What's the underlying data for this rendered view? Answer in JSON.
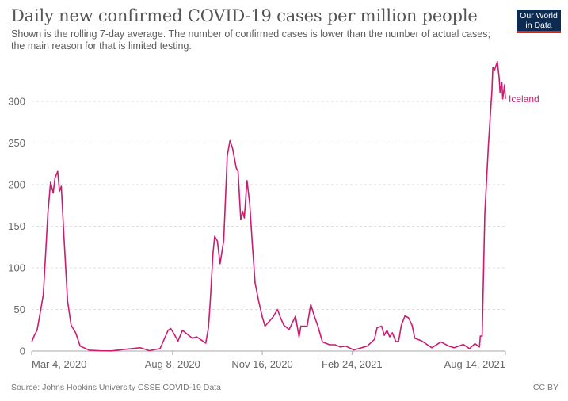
{
  "title": "Daily new confirmed COVID-19 cases per million people",
  "subtitle": "Shown is the rolling 7-day average. The number of confirmed cases is lower than the number of actual cases; the main reason for that is limited testing.",
  "logo": {
    "line1": "Our World",
    "line2": "in Data",
    "bg_color": "#0d2b52",
    "accent_color": "#d42b21"
  },
  "footer": {
    "source": "Source: Johns Hopkins University CSSE COVID-19 Data",
    "license": "CC BY"
  },
  "chart_data": {
    "type": "line",
    "title": "Daily new confirmed COVID-19 cases per million people",
    "xlabel": "",
    "ylabel": "",
    "xlim": [
      "2020-03-04",
      "2021-08-14"
    ],
    "ylim": [
      0,
      350
    ],
    "grid": "horizontal dashed",
    "x_ticks": [
      {
        "date": "2020-03-04",
        "label": "Mar 4, 2020"
      },
      {
        "date": "2020-08-08",
        "label": "Aug 8, 2020"
      },
      {
        "date": "2020-11-16",
        "label": "Nov 16, 2020"
      },
      {
        "date": "2021-02-24",
        "label": "Feb 24, 2021"
      },
      {
        "date": "2021-08-14",
        "label": "Aug 14, 2021"
      }
    ],
    "y_ticks": [
      0,
      50,
      100,
      150,
      200,
      250,
      300
    ],
    "series": [
      {
        "name": "Iceland",
        "color": "#cc1c72",
        "points": [
          [
            "2020-03-04",
            10.8
          ],
          [
            "2020-03-07",
            19
          ],
          [
            "2020-03-10",
            25
          ],
          [
            "2020-03-14",
            49
          ],
          [
            "2020-03-17",
            68
          ],
          [
            "2020-03-22",
            165
          ],
          [
            "2020-03-25",
            203
          ],
          [
            "2020-03-28",
            190
          ],
          [
            "2020-03-30",
            208
          ],
          [
            "2020-04-02",
            216
          ],
          [
            "2020-04-04",
            192
          ],
          [
            "2020-04-06",
            198
          ],
          [
            "2020-04-09",
            136
          ],
          [
            "2020-04-13",
            60
          ],
          [
            "2020-04-17",
            31
          ],
          [
            "2020-04-22",
            22
          ],
          [
            "2020-04-27",
            6
          ],
          [
            "2020-05-07",
            1
          ],
          [
            "2020-05-20",
            0.3
          ],
          [
            "2020-06-01",
            0.2
          ],
          [
            "2020-06-15",
            2
          ],
          [
            "2020-07-03",
            4
          ],
          [
            "2020-07-13",
            0.5
          ],
          [
            "2020-07-25",
            3
          ],
          [
            "2020-08-03",
            25
          ],
          [
            "2020-08-06",
            27
          ],
          [
            "2020-08-10",
            20
          ],
          [
            "2020-08-14",
            12
          ],
          [
            "2020-08-19",
            25
          ],
          [
            "2020-08-30",
            15.5
          ],
          [
            "2020-09-04",
            17
          ],
          [
            "2020-09-14",
            9.5
          ],
          [
            "2020-09-17",
            28
          ],
          [
            "2020-09-19",
            60
          ],
          [
            "2020-09-22",
            117
          ],
          [
            "2020-09-24",
            138
          ],
          [
            "2020-09-27",
            132
          ],
          [
            "2020-09-30",
            105
          ],
          [
            "2020-10-04",
            133
          ],
          [
            "2020-10-08",
            235
          ],
          [
            "2020-10-11",
            253
          ],
          [
            "2020-10-14",
            243
          ],
          [
            "2020-10-18",
            220
          ],
          [
            "2020-10-20",
            216
          ],
          [
            "2020-10-23",
            158
          ],
          [
            "2020-10-25",
            168
          ],
          [
            "2020-10-27",
            160
          ],
          [
            "2020-10-30",
            205
          ],
          [
            "2020-11-02",
            177
          ],
          [
            "2020-11-05",
            127
          ],
          [
            "2020-11-08",
            82
          ],
          [
            "2020-11-12",
            60
          ],
          [
            "2020-11-16",
            41
          ],
          [
            "2020-11-19",
            30
          ],
          [
            "2020-11-24",
            36
          ],
          [
            "2020-11-28",
            41
          ],
          [
            "2020-12-03",
            50
          ],
          [
            "2020-12-06",
            41
          ],
          [
            "2020-12-10",
            31
          ],
          [
            "2020-12-16",
            26
          ],
          [
            "2020-12-23",
            42
          ],
          [
            "2020-12-27",
            17
          ],
          [
            "2020-12-29",
            30
          ],
          [
            "2021-01-05",
            30
          ],
          [
            "2021-01-09",
            56
          ],
          [
            "2021-01-13",
            42
          ],
          [
            "2021-01-17",
            30
          ],
          [
            "2021-01-22",
            11
          ],
          [
            "2021-01-30",
            7.6
          ],
          [
            "2021-02-05",
            7.6
          ],
          [
            "2021-02-11",
            5
          ],
          [
            "2021-02-17",
            6
          ],
          [
            "2021-02-26",
            1.3
          ],
          [
            "2021-03-13",
            6
          ],
          [
            "2021-03-21",
            14
          ],
          [
            "2021-03-24",
            28
          ],
          [
            "2021-03-29",
            30
          ],
          [
            "2021-04-01",
            19
          ],
          [
            "2021-04-04",
            25
          ],
          [
            "2021-04-07",
            17
          ],
          [
            "2021-04-10",
            22
          ],
          [
            "2021-04-14",
            11
          ],
          [
            "2021-04-17",
            12
          ],
          [
            "2021-04-20",
            31
          ],
          [
            "2021-04-24",
            42.5
          ],
          [
            "2021-04-28",
            40
          ],
          [
            "2021-05-02",
            31
          ],
          [
            "2021-05-05",
            15.5
          ],
          [
            "2021-05-13",
            12
          ],
          [
            "2021-05-24",
            4
          ],
          [
            "2021-06-03",
            11
          ],
          [
            "2021-06-12",
            6
          ],
          [
            "2021-06-18",
            4
          ],
          [
            "2021-06-28",
            8
          ],
          [
            "2021-07-05",
            3
          ],
          [
            "2021-07-11",
            9
          ],
          [
            "2021-07-16",
            5
          ],
          [
            "2021-07-17",
            18
          ],
          [
            "2021-07-19",
            18
          ],
          [
            "2021-07-22",
            165
          ],
          [
            "2021-07-26",
            247
          ],
          [
            "2021-07-30",
            314
          ],
          [
            "2021-07-31",
            341
          ],
          [
            "2021-08-02",
            338
          ],
          [
            "2021-08-05",
            348
          ],
          [
            "2021-08-07",
            328
          ],
          [
            "2021-08-08",
            311
          ],
          [
            "2021-08-10",
            323
          ],
          [
            "2021-08-11",
            303
          ],
          [
            "2021-08-13",
            320
          ],
          [
            "2021-08-14",
            303
          ]
        ]
      }
    ]
  }
}
